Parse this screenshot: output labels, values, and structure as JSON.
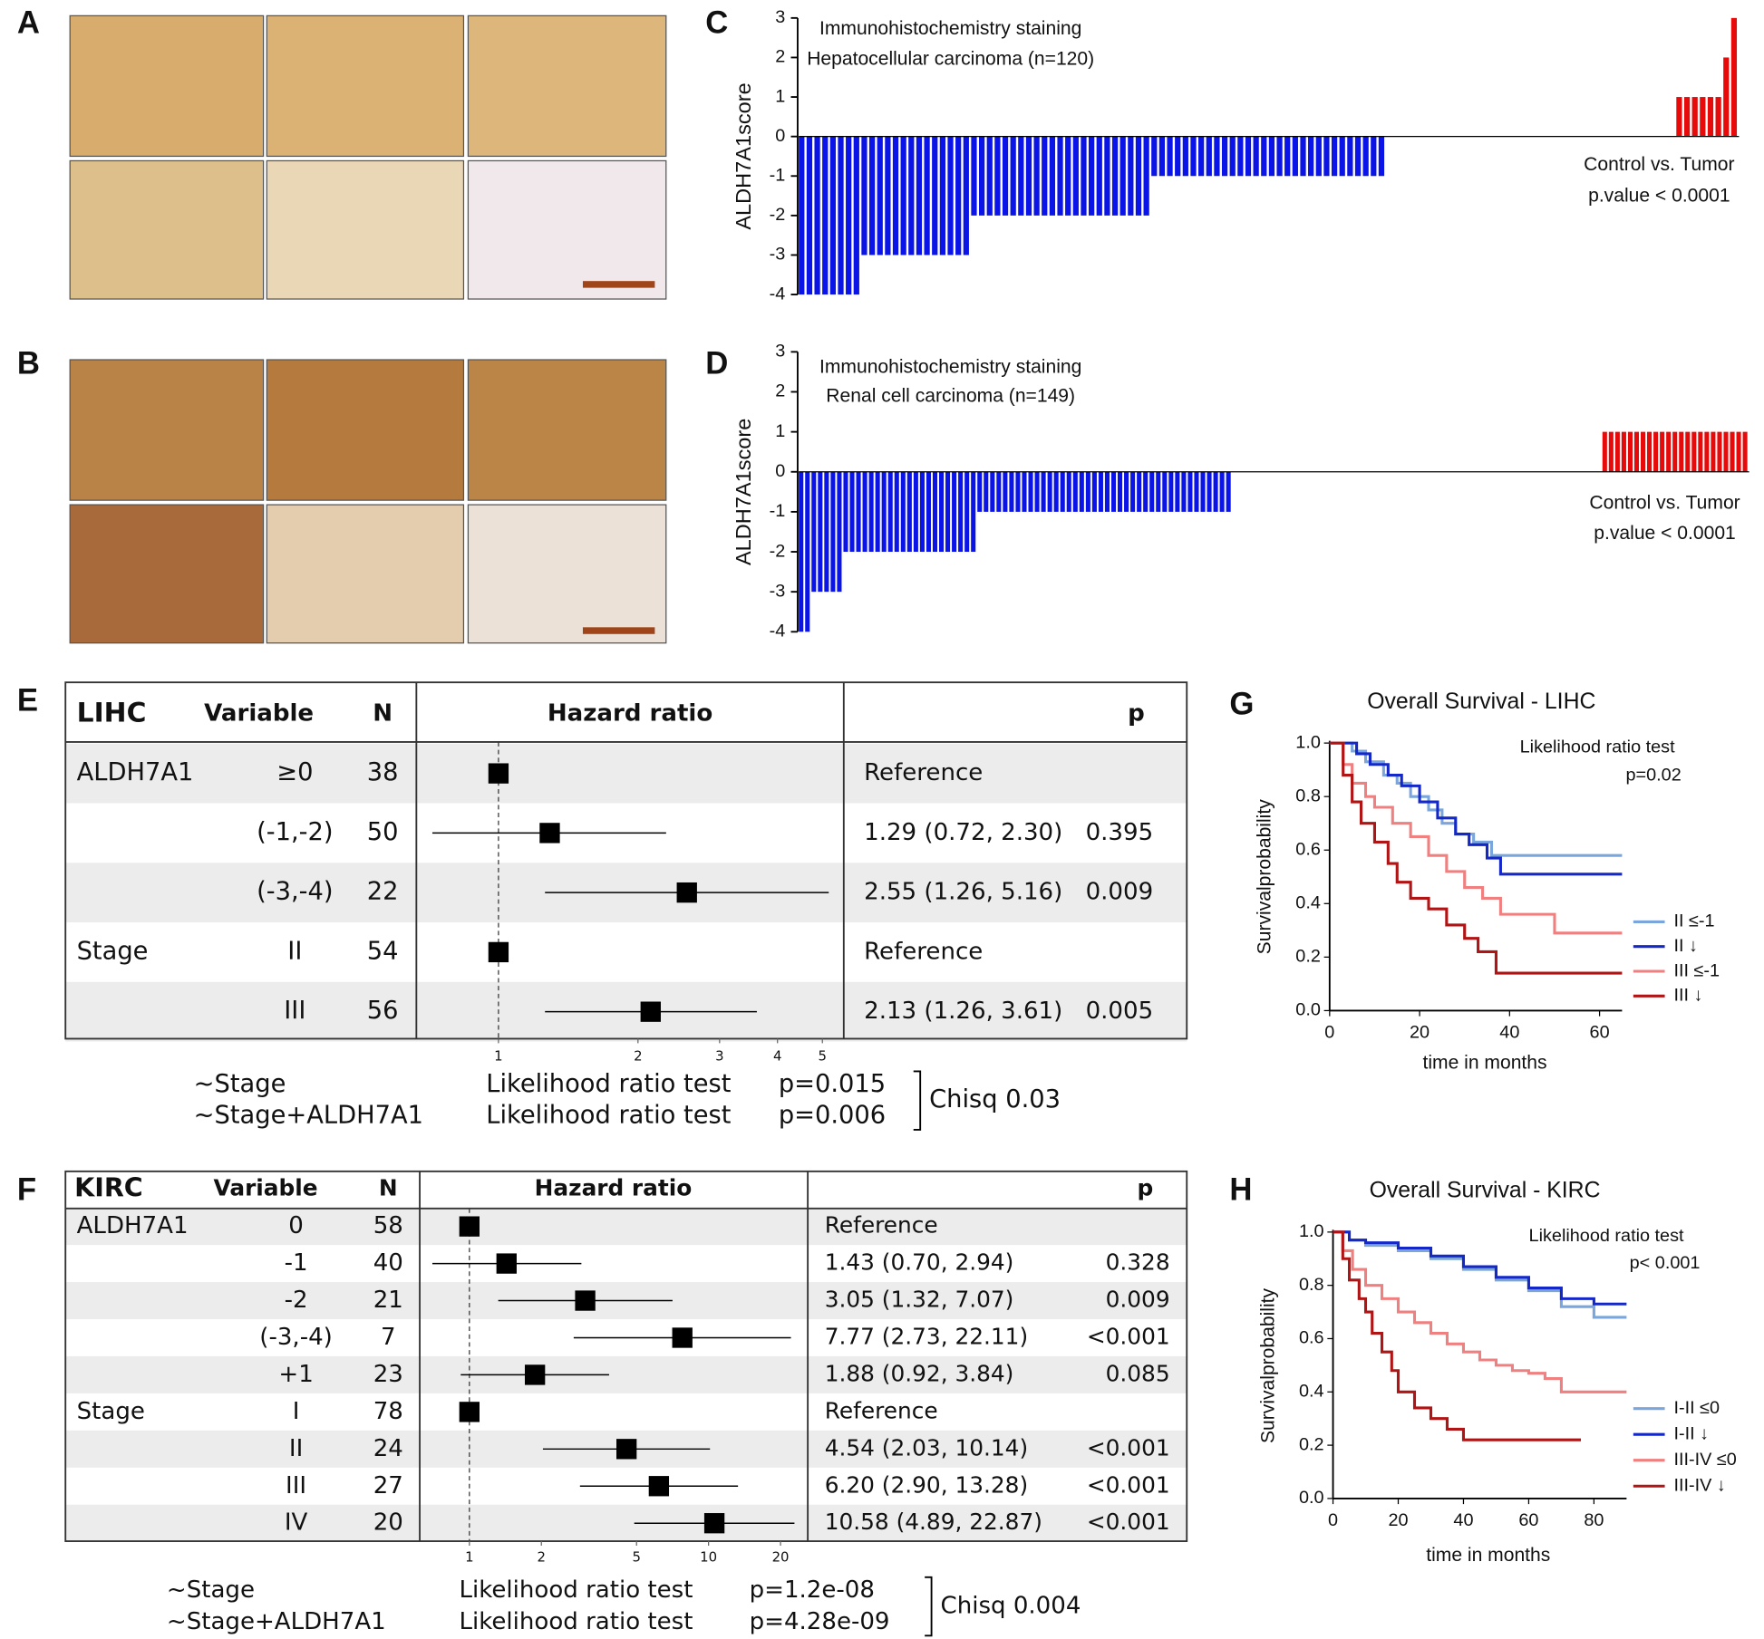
{
  "images": [
    {
      "label": "A"
    },
    {
      "label": "B"
    }
  ],
  "chart_data": [
    {
      "type": "bar",
      "label": "C",
      "title": [
        "Immunohistochemistry staining",
        "Hepatocellular carcinoma (n=120)"
      ],
      "ylabel": "ALDH7A1score",
      "annotation": [
        "Control vs. Tumor",
        "p.value < 0.0001"
      ],
      "ylim": [
        -4,
        3
      ],
      "yticks": [
        -4,
        -3,
        -2,
        -1,
        0,
        1,
        2,
        3
      ],
      "color": "#0a14e6",
      "positive_color": "#e60a0a",
      "values": [
        -4,
        -4,
        -4,
        -4,
        -4,
        -4,
        -4,
        -4,
        -3,
        -3,
        -3,
        -3,
        -3,
        -3,
        -3,
        -3,
        -3,
        -3,
        -3,
        -3,
        -3,
        -3,
        -2,
        -2,
        -2,
        -2,
        -2,
        -2,
        -2,
        -2,
        -2,
        -2,
        -2,
        -2,
        -2,
        -2,
        -2,
        -2,
        -2,
        -2,
        -2,
        -2,
        -2,
        -2,
        -2,
        -1,
        -1,
        -1,
        -1,
        -1,
        -1,
        -1,
        -1,
        -1,
        -1,
        -1,
        -1,
        -1,
        -1,
        -1,
        -1,
        -1,
        -1,
        -1,
        -1,
        -1,
        -1,
        -1,
        -1,
        -1,
        -1,
        -1,
        -1,
        -1,
        -1,
        0,
        0,
        0,
        0,
        0,
        0,
        0,
        0,
        0,
        0,
        0,
        0,
        0,
        0,
        0,
        0,
        0,
        0,
        0,
        0,
        0,
        0,
        0,
        0,
        0,
        0,
        0,
        0,
        0,
        0,
        0,
        0,
        0,
        0,
        0,
        0,
        0,
        1,
        1,
        1,
        1,
        1,
        1,
        2,
        3
      ]
    },
    {
      "type": "bar",
      "label": "D",
      "title": [
        "Immunohistochemistry staining",
        "Renal cell carcinoma (n=149)"
      ],
      "ylabel": "ALDH7A1score",
      "annotation": [
        "Control vs. Tumor",
        "p.value < 0.0001"
      ],
      "ylim": [
        -4,
        3
      ],
      "yticks": [
        -4,
        -3,
        -2,
        -1,
        0,
        1,
        2,
        3
      ],
      "color": "#0a14e6",
      "positive_color": "#e60a0a",
      "values": [
        -4,
        -4,
        -3,
        -3,
        -3,
        -3,
        -3,
        -2,
        -2,
        -2,
        -2,
        -2,
        -2,
        -2,
        -2,
        -2,
        -2,
        -2,
        -2,
        -2,
        -2,
        -2,
        -2,
        -2,
        -2,
        -2,
        -2,
        -2,
        -1,
        -1,
        -1,
        -1,
        -1,
        -1,
        -1,
        -1,
        -1,
        -1,
        -1,
        -1,
        -1,
        -1,
        -1,
        -1,
        -1,
        -1,
        -1,
        -1,
        -1,
        -1,
        -1,
        -1,
        -1,
        -1,
        -1,
        -1,
        -1,
        -1,
        -1,
        -1,
        -1,
        -1,
        -1,
        -1,
        -1,
        -1,
        -1,
        -1,
        0,
        0,
        0,
        0,
        0,
        0,
        0,
        0,
        0,
        0,
        0,
        0,
        0,
        0,
        0,
        0,
        0,
        0,
        0,
        0,
        0,
        0,
        0,
        0,
        0,
        0,
        0,
        0,
        0,
        0,
        0,
        0,
        0,
        0,
        0,
        0,
        0,
        0,
        0,
        0,
        0,
        0,
        0,
        0,
        0,
        0,
        0,
        0,
        0,
        0,
        0,
        0,
        0,
        0,
        0,
        0,
        0,
        0,
        1,
        1,
        1,
        1,
        1,
        1,
        1,
        1,
        1,
        1,
        1,
        1,
        1,
        1,
        1,
        1,
        1,
        1,
        1,
        1,
        1,
        1,
        1
      ]
    },
    {
      "type": "forest",
      "label": "E",
      "title": "LIHC",
      "headers": [
        "Variable",
        "N",
        "Hazard ratio",
        "p"
      ],
      "log": true,
      "xlim": [
        0.665,
        5.56
      ],
      "xticks": [
        1,
        2,
        3,
        4,
        5
      ],
      "rows": [
        {
          "variable": "ALDH7A1",
          "level": "≥0",
          "n": 38,
          "hr": 1,
          "estimate": "Reference"
        },
        {
          "level": "(-1,-2)",
          "n": 50,
          "hr": 1.29,
          "ci": [
            0.72,
            2.3
          ],
          "estimate": "1.29 (0.72, 2.30)",
          "p": 0.395
        },
        {
          "level": "(-3,-4)",
          "n": 22,
          "hr": 2.55,
          "ci": [
            1.26,
            5.16
          ],
          "estimate": "2.55 (1.26, 5.16)",
          "p": 0.009
        },
        {
          "variable": "Stage",
          "level": "II",
          "n": 54,
          "hr": 1,
          "estimate": "Reference"
        },
        {
          "level": "III",
          "n": 56,
          "hr": 2.13,
          "ci": [
            1.26,
            3.61
          ],
          "estimate": "2.13 (1.26, 3.61)",
          "p": 0.005
        }
      ],
      "models": [
        {
          "formula": "~Stage",
          "test": "Likelihood ratio test",
          "p": "p=0.015"
        },
        {
          "formula": "~Stage+ALDH7A1",
          "test": "Likelihood ratio test",
          "p": "p=0.006"
        }
      ],
      "comparison": "Chisq 0.03"
    },
    {
      "type": "forest",
      "label": "F",
      "title": "KIRC",
      "headers": [
        "Variable",
        "N",
        "Hazard ratio",
        "p"
      ],
      "log": true,
      "xlim": [
        0.62,
        26
      ],
      "xticks": [
        1,
        2,
        5,
        10,
        20
      ],
      "rows": [
        {
          "variable": "ALDH7A1",
          "level": "0",
          "n": 58,
          "hr": 1,
          "estimate": "Reference"
        },
        {
          "level": "-1",
          "n": 40,
          "hr": 1.43,
          "ci": [
            0.7,
            2.94
          ],
          "estimate": "1.43 (0.70, 2.94)",
          "p": 0.328
        },
        {
          "level": "-2",
          "n": 21,
          "hr": 3.05,
          "ci": [
            1.32,
            7.07
          ],
          "estimate": "3.05 (1.32, 7.07)",
          "p": 0.009
        },
        {
          "level": "(-3,-4)",
          "n": 7,
          "hr": 7.77,
          "ci": [
            2.73,
            22.11
          ],
          "estimate": "7.77 (2.73, 22.11)",
          "p": "<0.001"
        },
        {
          "level": "+1",
          "n": 23,
          "hr": 1.88,
          "ci": [
            0.92,
            3.84
          ],
          "estimate": "1.88 (0.92, 3.84)",
          "p": 0.085
        },
        {
          "variable": "Stage",
          "level": "I",
          "n": 78,
          "hr": 1,
          "estimate": "Reference"
        },
        {
          "level": "II",
          "n": 24,
          "hr": 4.54,
          "ci": [
            2.03,
            10.14
          ],
          "estimate": "4.54 (2.03, 10.14)",
          "p": "<0.001"
        },
        {
          "level": "III",
          "n": 27,
          "hr": 6.2,
          "ci": [
            2.9,
            13.28
          ],
          "estimate": "6.20 (2.90, 13.28)",
          "p": "<0.001"
        },
        {
          "level": "IV",
          "n": 20,
          "hr": 10.58,
          "ci": [
            4.89,
            22.87
          ],
          "estimate": "10.58 (4.89, 22.87)",
          "p": "<0.001"
        }
      ],
      "models": [
        {
          "formula": "~Stage",
          "test": "Likelihood ratio test",
          "p": "p=1.2e-08"
        },
        {
          "formula": "~Stage+ALDH7A1",
          "test": "Likelihood ratio test",
          "p": "p=4.28e-09"
        }
      ],
      "comparison": "Chisq 0.004"
    },
    {
      "type": "km",
      "label": "G",
      "title": "Overall Survival - LIHC",
      "xlabel": "time in months",
      "ylabel": "Survivalprobability",
      "annotation": [
        "Likelihood ratio test",
        "p=0.02"
      ],
      "xlim": [
        0,
        65
      ],
      "xticks": [
        0,
        20,
        40,
        60
      ],
      "ylim": [
        0,
        1
      ],
      "yticks": [
        {
          "value": 0,
          "label": "0.0"
        },
        {
          "value": 0.2,
          "label": "0.2"
        },
        {
          "value": 0.4,
          "label": "0.4"
        },
        {
          "value": 0.6,
          "label": "0.6"
        },
        {
          "value": 0.8,
          "label": "0.8"
        },
        {
          "value": 1,
          "label": "1.0"
        }
      ],
      "series": [
        {
          "name": "II ≤-1",
          "color": "#7aa6dc",
          "x": [
            0,
            5,
            8,
            12,
            15,
            18,
            22,
            25,
            28,
            32,
            36,
            65
          ],
          "values": [
            1,
            0.97,
            0.93,
            0.88,
            0.85,
            0.8,
            0.75,
            0.7,
            0.66,
            0.63,
            0.58,
            0.58
          ]
        },
        {
          "name": "II ↓",
          "color": "#1428c8",
          "x": [
            0,
            6,
            9,
            13,
            16,
            20,
            24,
            28,
            31,
            35,
            38,
            65
          ],
          "values": [
            1,
            0.96,
            0.92,
            0.88,
            0.84,
            0.78,
            0.72,
            0.66,
            0.62,
            0.57,
            0.51,
            0.51
          ]
        },
        {
          "name": "III ≤-1",
          "color": "#f08080",
          "x": [
            0,
            3,
            5,
            8,
            10,
            14,
            18,
            22,
            26,
            30,
            34,
            38,
            50,
            65
          ],
          "values": [
            1,
            0.92,
            0.85,
            0.8,
            0.76,
            0.7,
            0.65,
            0.58,
            0.52,
            0.46,
            0.42,
            0.36,
            0.29,
            0.29
          ]
        },
        {
          "name": "III ↓",
          "color": "#b01414",
          "x": [
            0,
            3,
            5,
            7,
            10,
            13,
            15,
            18,
            22,
            26,
            30,
            33,
            37,
            65
          ],
          "values": [
            1,
            0.88,
            0.78,
            0.7,
            0.63,
            0.55,
            0.48,
            0.42,
            0.38,
            0.32,
            0.27,
            0.22,
            0.14,
            0.14
          ]
        }
      ]
    },
    {
      "type": "km",
      "label": "H",
      "title": "Overall Survival - KIRC",
      "xlabel": "time in months",
      "ylabel": "Survivalprobability",
      "annotation": [
        "Likelihood ratio test",
        "p< 0.001"
      ],
      "xlim": [
        0,
        90
      ],
      "xticks": [
        0,
        20,
        40,
        60,
        80
      ],
      "ylim": [
        0,
        1
      ],
      "yticks": [
        {
          "value": 0,
          "label": "0.0"
        },
        {
          "value": 0.2,
          "label": "0.2"
        },
        {
          "value": 0.4,
          "label": "0.4"
        },
        {
          "value": 0.6,
          "label": "0.6"
        },
        {
          "value": 0.8,
          "label": "0.8"
        },
        {
          "value": 1,
          "label": "1.0"
        }
      ],
      "series": [
        {
          "name": "I-II ≤0",
          "color": "#7aa6dc",
          "x": [
            0,
            5,
            10,
            20,
            30,
            40,
            50,
            60,
            70,
            80,
            90
          ],
          "values": [
            1,
            0.97,
            0.95,
            0.93,
            0.9,
            0.86,
            0.82,
            0.78,
            0.72,
            0.68,
            0.68
          ]
        },
        {
          "name": "I-II ↓",
          "color": "#1428c8",
          "x": [
            0,
            5,
            10,
            20,
            30,
            40,
            50,
            60,
            70,
            80,
            90
          ],
          "values": [
            1,
            0.97,
            0.96,
            0.94,
            0.91,
            0.87,
            0.83,
            0.79,
            0.75,
            0.73,
            0.73
          ]
        },
        {
          "name": "III-IV ≤0",
          "color": "#f08080",
          "x": [
            0,
            3,
            6,
            10,
            15,
            20,
            25,
            30,
            35,
            40,
            45,
            50,
            55,
            60,
            65,
            70,
            90
          ],
          "values": [
            1,
            0.93,
            0.86,
            0.8,
            0.75,
            0.7,
            0.66,
            0.62,
            0.58,
            0.55,
            0.52,
            0.5,
            0.48,
            0.47,
            0.45,
            0.4,
            0.4
          ]
        },
        {
          "name": "III-IV ↓",
          "color": "#b01414",
          "x": [
            0,
            3,
            5,
            8,
            10,
            12,
            15,
            18,
            20,
            25,
            30,
            35,
            40,
            76
          ],
          "values": [
            1,
            0.9,
            0.82,
            0.75,
            0.7,
            0.62,
            0.55,
            0.48,
            0.4,
            0.34,
            0.3,
            0.26,
            0.22,
            0.22
          ]
        }
      ]
    }
  ]
}
